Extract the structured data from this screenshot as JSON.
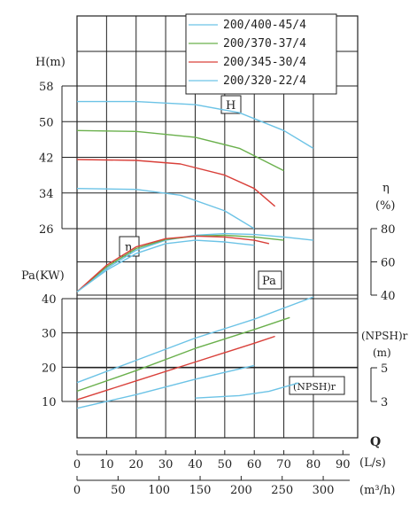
{
  "chart_data": {
    "type": "line",
    "legend_position": "top-right",
    "legend": [
      {
        "name": "200/400-45/4",
        "color": "#6cc3e6"
      },
      {
        "name": "200/370-37/4",
        "color": "#6ab04c"
      },
      {
        "name": "200/345-30/4",
        "color": "#d9403a"
      },
      {
        "name": "200/320-22/4",
        "color": "#6cc3e6"
      }
    ],
    "labels": {
      "h_axis": "H(m)",
      "eta_axis": "η",
      "eta_unit": "(%)",
      "pa_axis": "Pa(KW)",
      "npsh_axis": "(NPSH)r",
      "npsh_unit": "(m)",
      "q_label": "Q",
      "q_unit_ls": "(L/s)",
      "q_unit_m3h": "(m³/h)",
      "box_h": "H",
      "box_eta": "η",
      "box_pa": "Pa",
      "box_npsh": "(NPSH)r"
    },
    "ticks": {
      "h": [
        "58",
        "50",
        "42",
        "34",
        "26"
      ],
      "eta": [
        "80",
        "60",
        "40"
      ],
      "pa": [
        "40",
        "30",
        "20",
        "10"
      ],
      "npsh": [
        "5",
        "3"
      ],
      "q_ls": [
        "0",
        "10",
        "20",
        "30",
        "40",
        "50",
        "60",
        "70",
        "80",
        "90"
      ],
      "q_m3h": [
        "0",
        "50",
        "100",
        "150",
        "200",
        "250",
        "300"
      ]
    },
    "axes": {
      "q_ls_range": [
        0,
        95
      ],
      "h_range": [
        26,
        58
      ],
      "eta_range": [
        40,
        80
      ],
      "pa_range": [
        10,
        40
      ],
      "npsh_range": [
        3,
        5
      ]
    },
    "series": [
      {
        "name": "200/400-45/4",
        "color": "#6cc3e6",
        "H": [
          [
            0,
            54.5
          ],
          [
            20,
            54.5
          ],
          [
            40,
            53.8
          ],
          [
            55,
            52
          ],
          [
            70,
            48
          ],
          [
            80,
            44
          ]
        ],
        "eta": [
          [
            0,
            42
          ],
          [
            10,
            56
          ],
          [
            20,
            67
          ],
          [
            30,
            73
          ],
          [
            40,
            76
          ],
          [
            50,
            77
          ],
          [
            60,
            76.5
          ],
          [
            70,
            75
          ],
          [
            80,
            73
          ]
        ],
        "Pa": [
          [
            0,
            15.5
          ],
          [
            20,
            22
          ],
          [
            40,
            28.5
          ],
          [
            60,
            34
          ],
          [
            80,
            40.5
          ]
        ],
        "npsh": [
          [
            40,
            3.2
          ],
          [
            55,
            3.35
          ],
          [
            65,
            3.6
          ],
          [
            75,
            4.1
          ]
        ]
      },
      {
        "name": "200/370-37/4",
        "color": "#6ab04c",
        "H": [
          [
            0,
            48
          ],
          [
            20,
            47.8
          ],
          [
            40,
            46.5
          ],
          [
            55,
            44
          ],
          [
            70,
            39
          ]
        ],
        "eta": [
          [
            0,
            42
          ],
          [
            10,
            57
          ],
          [
            20,
            68
          ],
          [
            30,
            73.5
          ],
          [
            40,
            75.5
          ],
          [
            50,
            76
          ],
          [
            60,
            75
          ],
          [
            70,
            73
          ]
        ],
        "Pa": [
          [
            0,
            13
          ],
          [
            20,
            19
          ],
          [
            40,
            25.5
          ],
          [
            60,
            31
          ],
          [
            72,
            34.5
          ]
        ],
        "npsh": []
      },
      {
        "name": "200/345-30/4",
        "color": "#d9403a",
        "H": [
          [
            0,
            41.5
          ],
          [
            20,
            41.3
          ],
          [
            35,
            40.5
          ],
          [
            50,
            38
          ],
          [
            60,
            35
          ],
          [
            67,
            31
          ]
        ],
        "eta": [
          [
            0,
            42
          ],
          [
            10,
            58
          ],
          [
            20,
            69
          ],
          [
            30,
            74
          ],
          [
            40,
            75.5
          ],
          [
            50,
            75
          ],
          [
            60,
            73
          ],
          [
            65,
            71
          ]
        ],
        "Pa": [
          [
            0,
            10.5
          ],
          [
            20,
            16
          ],
          [
            40,
            21.5
          ],
          [
            60,
            27
          ],
          [
            67,
            29
          ]
        ],
        "npsh": []
      },
      {
        "name": "200/320-22/4",
        "color": "#6cc3e6",
        "H": [
          [
            0,
            35
          ],
          [
            20,
            34.8
          ],
          [
            35,
            33.5
          ],
          [
            50,
            30
          ],
          [
            60,
            26
          ]
        ],
        "eta": [
          [
            0,
            42
          ],
          [
            10,
            55
          ],
          [
            20,
            65
          ],
          [
            30,
            71
          ],
          [
            40,
            73
          ],
          [
            50,
            72
          ],
          [
            60,
            70
          ]
        ],
        "Pa": [
          [
            0,
            8
          ],
          [
            20,
            12
          ],
          [
            40,
            16.5
          ],
          [
            60,
            20.5
          ]
        ],
        "npsh": []
      }
    ]
  }
}
